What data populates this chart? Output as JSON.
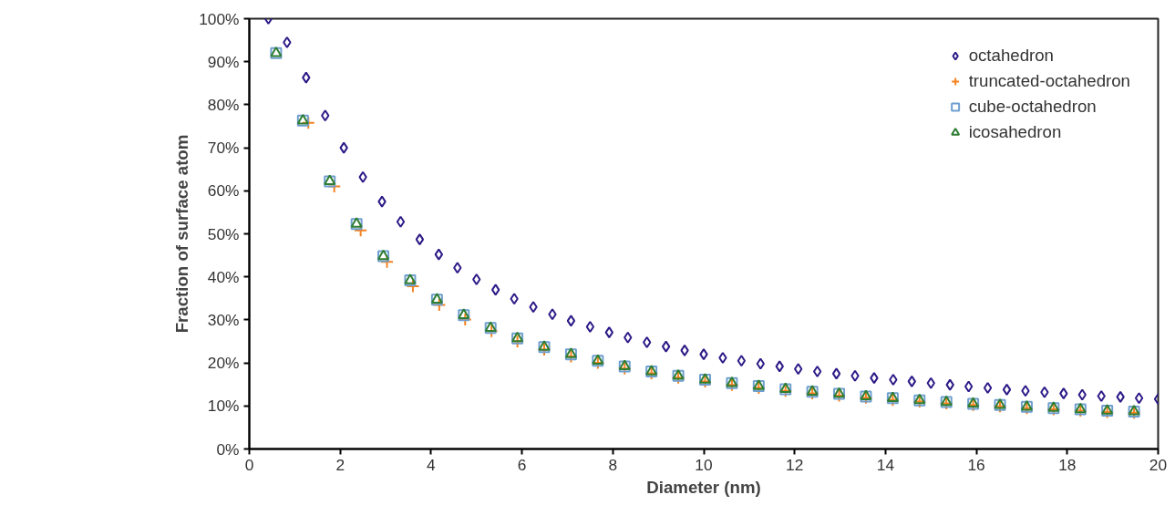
{
  "chart_data": {
    "type": "scatter",
    "xlabel": "Diameter (nm)",
    "ylabel": "Fraction of surface atom",
    "xlim": [
      0,
      20
    ],
    "xticks": [
      0,
      2,
      4,
      6,
      8,
      10,
      12,
      14,
      16,
      18,
      20
    ],
    "ylim": [
      0,
      100
    ],
    "yticks": [
      {
        "value": 0,
        "label": "0%"
      },
      {
        "value": 10,
        "label": "10%"
      },
      {
        "value": 20,
        "label": "20%"
      },
      {
        "value": 30,
        "label": "30%"
      },
      {
        "value": 40,
        "label": "40%"
      },
      {
        "value": 50,
        "label": "50%"
      },
      {
        "value": 60,
        "label": "60%"
      },
      {
        "value": 70,
        "label": "70%"
      },
      {
        "value": 80,
        "label": "80%"
      },
      {
        "value": 90,
        "label": "90%"
      },
      {
        "value": 100,
        "label": "100%"
      }
    ],
    "grid": false,
    "legend": "top right",
    "series": [
      {
        "name": "octahedron",
        "color": "#2e1a87",
        "marker": "diamond",
        "x": [
          0.42,
          0.83,
          1.25,
          1.67,
          2.08,
          2.5,
          2.92,
          3.33,
          3.75,
          4.17,
          4.58,
          5.0,
          5.42,
          5.83,
          6.25,
          6.67,
          7.08,
          7.5,
          7.92,
          8.33,
          8.75,
          9.17,
          9.58,
          10.0,
          10.42,
          10.83,
          11.25,
          11.67,
          12.08,
          12.5,
          12.92,
          13.33,
          13.75,
          14.17,
          14.58,
          15.0,
          15.42,
          15.83,
          16.25,
          16.67,
          17.08,
          17.5,
          17.92,
          18.33,
          18.75,
          19.17,
          19.58,
          20.0
        ],
        "values": [
          100,
          94.5,
          86.3,
          77.5,
          70,
          63.2,
          57.5,
          52.8,
          48.7,
          45.2,
          42.1,
          39.4,
          37,
          34.9,
          33,
          31.3,
          29.8,
          28.4,
          27.1,
          25.9,
          24.8,
          23.8,
          22.9,
          22,
          21.2,
          20.5,
          19.8,
          19.2,
          18.6,
          18,
          17.5,
          17,
          16.5,
          16.1,
          15.7,
          15.3,
          14.9,
          14.5,
          14.2,
          13.8,
          13.5,
          13.2,
          12.9,
          12.6,
          12.3,
          12.1,
          11.8,
          11.6
        ]
      },
      {
        "name": "truncated-octahedron",
        "color": "#f5821f",
        "marker": "cross",
        "x": [
          1.3,
          1.87,
          2.45,
          3.03,
          3.6,
          4.18,
          4.75,
          5.33,
          5.9,
          6.49,
          7.08,
          7.67,
          8.26,
          8.85,
          9.44,
          10.03,
          10.62,
          11.21,
          11.8,
          12.39,
          12.98,
          13.57,
          14.16,
          14.75,
          15.34,
          15.93,
          16.52,
          17.11,
          17.7,
          18.29,
          18.88,
          19.47
        ],
        "values": [
          75.8,
          61,
          50.8,
          43.5,
          37.8,
          33.5,
          30.1,
          27.4,
          25,
          23.1,
          21.5,
          20,
          18.7,
          17.6,
          16.6,
          15.7,
          14.9,
          14.2,
          13.5,
          12.9,
          12.4,
          11.9,
          11.4,
          11,
          10.6,
          10.2,
          9.9,
          9.5,
          9.2,
          8.9,
          8.6,
          8.4
        ]
      },
      {
        "name": "cube-octahedron",
        "color": "#6f9fcf",
        "marker": "square",
        "x": [
          0.59,
          1.18,
          1.77,
          2.36,
          2.95,
          3.54,
          4.13,
          4.72,
          5.31,
          5.9,
          6.49,
          7.08,
          7.67,
          8.26,
          8.85,
          9.44,
          10.03,
          10.62,
          11.21,
          11.8,
          12.39,
          12.98,
          13.57,
          14.16,
          14.75,
          15.34,
          15.93,
          16.52,
          17.11,
          17.7,
          18.29,
          18.88,
          19.47
        ],
        "values": [
          92,
          76.3,
          62.2,
          52.3,
          44.8,
          39.2,
          34.7,
          31.1,
          28.1,
          25.7,
          23.7,
          22,
          20.5,
          19.2,
          18,
          17,
          16.1,
          15.3,
          14.6,
          13.9,
          13.3,
          12.8,
          12.2,
          11.8,
          11.3,
          10.9,
          10.5,
          10.2,
          9.8,
          9.5,
          9.2,
          8.9,
          8.7
        ]
      },
      {
        "name": "icosahedron",
        "color": "#2e7d32",
        "marker": "triangle",
        "x": [
          0.59,
          1.18,
          1.77,
          2.36,
          2.95,
          3.54,
          4.13,
          4.72,
          5.31,
          5.9,
          6.49,
          7.08,
          7.67,
          8.26,
          8.85,
          9.44,
          10.03,
          10.62,
          11.21,
          11.8,
          12.39,
          12.98,
          13.57,
          14.16,
          14.75,
          15.34,
          15.93,
          16.52,
          17.11,
          17.7,
          18.29,
          18.88,
          19.47
        ],
        "values": [
          92,
          76.3,
          62.2,
          52.3,
          44.8,
          39.2,
          34.7,
          31.1,
          28.1,
          25.7,
          23.7,
          22,
          20.5,
          19.2,
          18,
          17,
          16.1,
          15.3,
          14.6,
          13.9,
          13.3,
          12.8,
          12.2,
          11.8,
          11.3,
          10.9,
          10.5,
          10.2,
          9.8,
          9.5,
          9.2,
          8.9,
          8.7
        ]
      }
    ]
  }
}
